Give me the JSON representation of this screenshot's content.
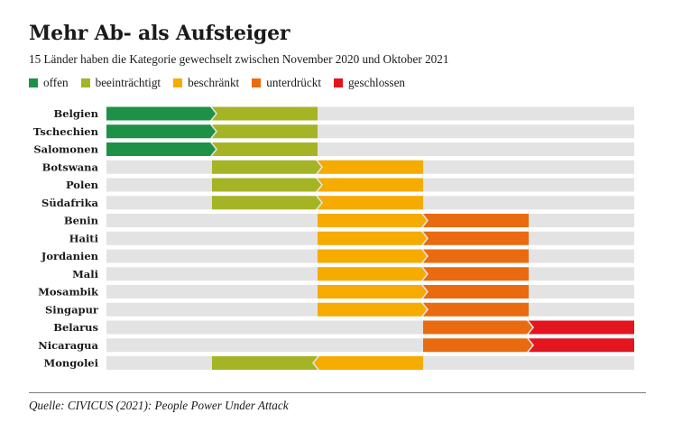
{
  "header": {
    "title": "Mehr Ab- als Aufsteiger",
    "subtitle": "15 Länder haben die Kategorie gewechselt zwischen November 2020 und Oktober 2021"
  },
  "source": {
    "prefix": "Quelle: CIVICUS (2021): ",
    "work": "People Power Under Attack"
  },
  "chart_data": {
    "type": "bar",
    "categories": [
      "offen",
      "beeinträchtigt",
      "beschränkt",
      "unterdrückt",
      "geschlossen"
    ],
    "colors": {
      "offen": "#1e9146",
      "beeinträchtigt": "#a5b425",
      "beschränkt": "#f5ab00",
      "unterdrückt": "#ea6a10",
      "geschlossen": "#e3151f",
      "track": "#e3e3e3"
    },
    "legend": [
      {
        "label": "offen",
        "color": "#1e9146"
      },
      {
        "label": "beeinträchtigt",
        "color": "#a5b425"
      },
      {
        "label": "beschränkt",
        "color": "#f5ab00"
      },
      {
        "label": "unterdrückt",
        "color": "#ea6a10"
      },
      {
        "label": "geschlossen",
        "color": "#e3151f"
      }
    ],
    "rows": [
      {
        "country": "Belgien",
        "from": "offen",
        "to": "beeinträchtigt"
      },
      {
        "country": "Tschechien",
        "from": "offen",
        "to": "beeinträchtigt"
      },
      {
        "country": "Salomonen",
        "from": "offen",
        "to": "beeinträchtigt"
      },
      {
        "country": "Botswana",
        "from": "beeinträchtigt",
        "to": "beschränkt"
      },
      {
        "country": "Polen",
        "from": "beeinträchtigt",
        "to": "beschränkt"
      },
      {
        "country": "Südafrika",
        "from": "beeinträchtigt",
        "to": "beschränkt"
      },
      {
        "country": "Benin",
        "from": "beschränkt",
        "to": "unterdrückt"
      },
      {
        "country": "Haiti",
        "from": "beschränkt",
        "to": "unterdrückt"
      },
      {
        "country": "Jordanien",
        "from": "beschränkt",
        "to": "unterdrückt"
      },
      {
        "country": "Mali",
        "from": "beschränkt",
        "to": "unterdrückt"
      },
      {
        "country": "Mosambik",
        "from": "beschränkt",
        "to": "unterdrückt"
      },
      {
        "country": "Singapur",
        "from": "beschränkt",
        "to": "unterdrückt"
      },
      {
        "country": "Belarus",
        "from": "unterdrückt",
        "to": "geschlossen"
      },
      {
        "country": "Nicaragua",
        "from": "unterdrückt",
        "to": "geschlossen"
      },
      {
        "country": "Mongolei",
        "from": "beschränkt",
        "to": "beeinträchtigt"
      }
    ]
  }
}
